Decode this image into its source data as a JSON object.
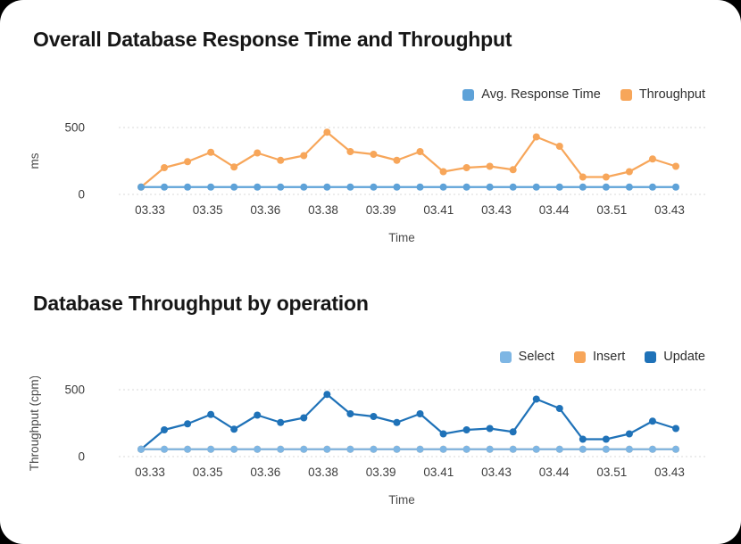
{
  "page": {
    "background_color": "#000000",
    "card_background_color": "#ffffff"
  },
  "chart_data": [
    {
      "type": "line",
      "title": "Overall Database Response Time and Throughput",
      "xlabel": "Time",
      "ylabel": "ms",
      "ylim": [
        0,
        500
      ],
      "y_ticks": [
        0,
        500
      ],
      "grid": "horizontal dotted lines at y ticks",
      "legend_position": "top-right",
      "x_tick_labels": [
        "03.33",
        "03.35",
        "03.36",
        "03.38",
        "03.39",
        "03.41",
        "03.43",
        "03.44",
        "03.51",
        "03.43"
      ],
      "series": [
        {
          "name": "Avg. Response Time",
          "color": "#5EA2D8",
          "values": [
            55,
            55,
            55,
            55,
            55,
            55,
            55,
            55,
            55,
            55,
            55,
            55,
            55,
            55,
            55,
            55,
            55,
            55,
            55,
            55,
            55,
            55,
            55,
            55
          ]
        },
        {
          "name": "Throughput",
          "color": "#F7A65A",
          "values": [
            55,
            200,
            245,
            315,
            205,
            310,
            255,
            290,
            465,
            320,
            300,
            255,
            320,
            170,
            200,
            210,
            185,
            430,
            360,
            130,
            130,
            170,
            265,
            210
          ]
        }
      ]
    },
    {
      "type": "line",
      "title": "Database Throughput by operation",
      "xlabel": "Time",
      "ylabel": "Throughput (cpm)",
      "ylim": [
        0,
        500
      ],
      "y_ticks": [
        0,
        500
      ],
      "grid": "horizontal dotted lines at y ticks",
      "legend_position": "top-right",
      "x_tick_labels": [
        "03.33",
        "03.35",
        "03.36",
        "03.38",
        "03.39",
        "03.41",
        "03.43",
        "03.44",
        "03.51",
        "03.43"
      ],
      "series": [
        {
          "name": "Select",
          "color": "#7EB6E4",
          "values": [
            55,
            55,
            55,
            55,
            55,
            55,
            55,
            55,
            55,
            55,
            55,
            55,
            55,
            55,
            55,
            55,
            55,
            55,
            55,
            55,
            55,
            55,
            55,
            55
          ]
        },
        {
          "name": "Insert",
          "color": "#F7A65A",
          "values": [
            55,
            55,
            55,
            55,
            55,
            55,
            55,
            55,
            55,
            55,
            55,
            55,
            55,
            55,
            55,
            55,
            55,
            55,
            55,
            55,
            55,
            55,
            55,
            55
          ]
        },
        {
          "name": "Update",
          "color": "#1F72B8",
          "values": [
            55,
            200,
            245,
            315,
            205,
            310,
            255,
            290,
            465,
            320,
            300,
            255,
            320,
            170,
            200,
            210,
            185,
            430,
            360,
            130,
            130,
            170,
            265,
            210
          ]
        }
      ]
    }
  ]
}
